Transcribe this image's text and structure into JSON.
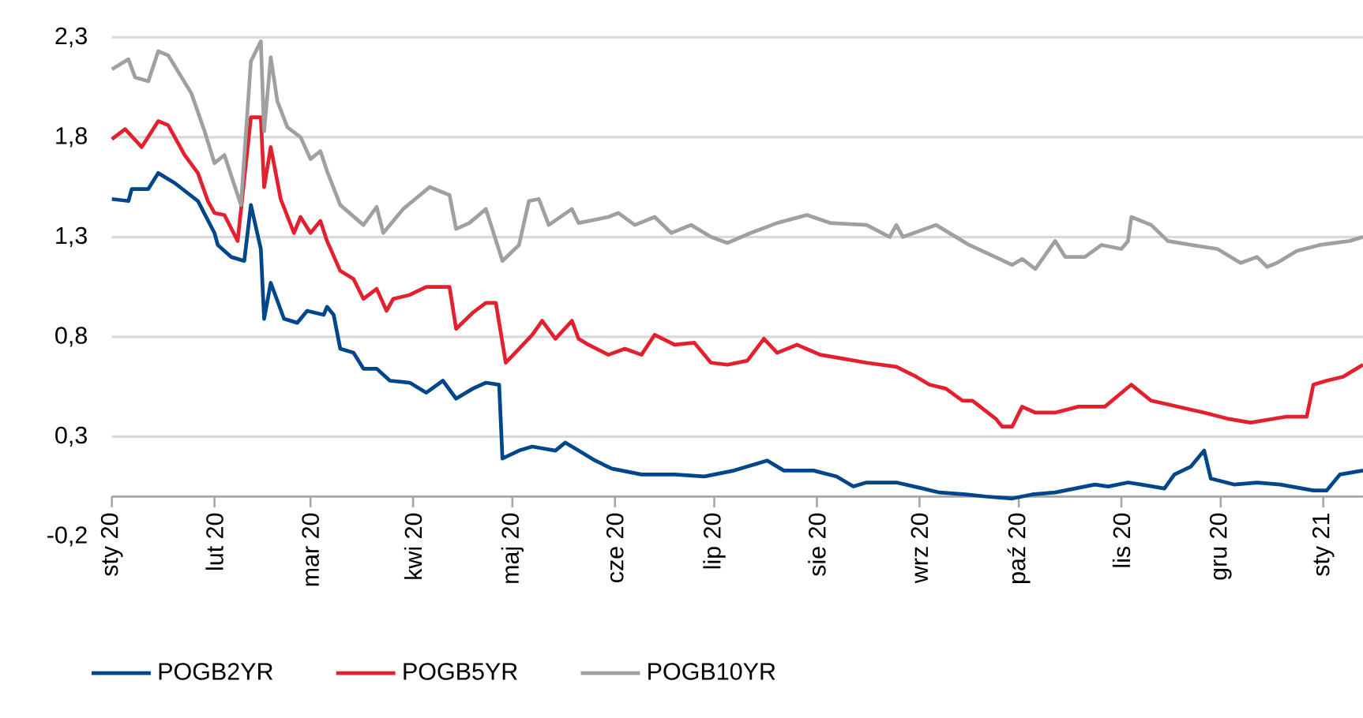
{
  "chart_data": {
    "type": "line",
    "xlim": [
      "2020-01-01",
      "2021-01-13"
    ],
    "ylim": [
      -0.2,
      2.3
    ],
    "yticks": [
      {
        "value": -0.2,
        "label": "-0,2"
      },
      {
        "value": 0.3,
        "label": "0,3"
      },
      {
        "value": 0.8,
        "label": "0,8"
      },
      {
        "value": 1.3,
        "label": "1,3"
      },
      {
        "value": 1.8,
        "label": "1,8"
      },
      {
        "value": 2.3,
        "label": "2,3"
      }
    ],
    "xticks": [
      {
        "value": "2020-01-01",
        "label": "sty 20"
      },
      {
        "value": "2020-02-01",
        "label": "lut 20"
      },
      {
        "value": "2020-03-01",
        "label": "mar 20"
      },
      {
        "value": "2020-04-01",
        "label": "kwi 20"
      },
      {
        "value": "2020-05-01",
        "label": "maj 20"
      },
      {
        "value": "2020-06-01",
        "label": "cze 20"
      },
      {
        "value": "2020-07-01",
        "label": "lip 20"
      },
      {
        "value": "2020-08-01",
        "label": "sie 20"
      },
      {
        "value": "2020-09-01",
        "label": "wrz 20"
      },
      {
        "value": "2020-10-01",
        "label": "paź 20"
      },
      {
        "value": "2020-11-01",
        "label": "lis 20"
      },
      {
        "value": "2020-12-01",
        "label": "gru 20"
      },
      {
        "value": "2021-01-01",
        "label": "sty 21"
      }
    ],
    "grid": "y",
    "legend": "bottom",
    "series": [
      {
        "name": "POGB2YR",
        "color": "#00468b",
        "x": [
          "2020-01-01",
          "2020-01-06",
          "2020-01-07",
          "2020-01-12",
          "2020-01-15",
          "2020-01-20",
          "2020-01-27",
          "2020-02-01",
          "2020-02-02",
          "2020-02-06",
          "2020-02-10",
          "2020-02-12",
          "2020-02-15",
          "2020-02-16",
          "2020-02-18",
          "2020-02-22",
          "2020-02-26",
          "2020-02-29",
          "2020-03-05",
          "2020-03-06",
          "2020-03-08",
          "2020-03-10",
          "2020-03-14",
          "2020-03-17",
          "2020-03-21",
          "2020-03-25",
          "2020-03-31",
          "2020-04-05",
          "2020-04-10",
          "2020-04-14",
          "2020-04-19",
          "2020-04-23",
          "2020-04-27",
          "2020-04-28",
          "2020-05-03",
          "2020-05-07",
          "2020-05-14",
          "2020-05-17",
          "2020-05-21",
          "2020-05-26",
          "2020-05-31",
          "2020-06-09",
          "2020-06-19",
          "2020-06-28",
          "2020-07-07",
          "2020-07-17",
          "2020-07-22",
          "2020-07-31",
          "2020-08-07",
          "2020-08-12",
          "2020-08-16",
          "2020-08-25",
          "2020-09-02",
          "2020-09-07",
          "2020-09-15",
          "2020-09-21",
          "2020-09-29",
          "2020-10-05",
          "2020-10-12",
          "2020-10-24",
          "2020-10-28",
          "2020-11-03",
          "2020-11-07",
          "2020-11-14",
          "2020-11-17",
          "2020-11-22",
          "2020-11-26",
          "2020-11-28",
          "2020-12-05",
          "2020-12-12",
          "2020-12-19",
          "2020-12-29",
          "2021-01-02",
          "2021-01-06",
          "2021-01-13"
        ],
        "values": [
          1.49,
          1.48,
          1.54,
          1.54,
          1.62,
          1.57,
          1.48,
          1.32,
          1.26,
          1.2,
          1.18,
          1.46,
          1.24,
          0.89,
          1.07,
          0.89,
          0.87,
          0.93,
          0.91,
          0.95,
          0.91,
          0.74,
          0.72,
          0.64,
          0.64,
          0.58,
          0.57,
          0.52,
          0.58,
          0.49,
          0.54,
          0.57,
          0.56,
          0.19,
          0.23,
          0.25,
          0.23,
          0.27,
          0.23,
          0.18,
          0.14,
          0.11,
          0.11,
          0.1,
          0.13,
          0.18,
          0.13,
          0.13,
          0.1,
          0.05,
          0.07,
          0.07,
          0.04,
          0.02,
          0.01,
          0.0,
          -0.01,
          0.01,
          0.02,
          0.06,
          0.05,
          0.07,
          0.06,
          0.04,
          0.11,
          0.15,
          0.23,
          0.09,
          0.06,
          0.07,
          0.06,
          0.03,
          0.03,
          0.11,
          0.13
        ]
      },
      {
        "name": "POGB5YR",
        "color": "#e2202e",
        "x": [
          "2020-01-01",
          "2020-01-05",
          "2020-01-10",
          "2020-01-15",
          "2020-01-18",
          "2020-01-23",
          "2020-01-27",
          "2020-01-30",
          "2020-02-01",
          "2020-02-04",
          "2020-02-08",
          "2020-02-12",
          "2020-02-15",
          "2020-02-16",
          "2020-02-18",
          "2020-02-21",
          "2020-02-25",
          "2020-02-27",
          "2020-03-01",
          "2020-03-04",
          "2020-03-06",
          "2020-03-10",
          "2020-03-14",
          "2020-03-17",
          "2020-03-21",
          "2020-03-24",
          "2020-03-26",
          "2020-03-31",
          "2020-04-05",
          "2020-04-12",
          "2020-04-14",
          "2020-04-19",
          "2020-04-23",
          "2020-04-26",
          "2020-04-29",
          "2020-05-03",
          "2020-05-07",
          "2020-05-10",
          "2020-05-14",
          "2020-05-19",
          "2020-05-21",
          "2020-05-24",
          "2020-05-30",
          "2020-06-04",
          "2020-06-09",
          "2020-06-13",
          "2020-06-19",
          "2020-06-25",
          "2020-06-30",
          "2020-07-05",
          "2020-07-11",
          "2020-07-16",
          "2020-07-20",
          "2020-07-26",
          "2020-08-02",
          "2020-08-09",
          "2020-08-16",
          "2020-08-25",
          "2020-08-31",
          "2020-09-04",
          "2020-09-09",
          "2020-09-14",
          "2020-09-17",
          "2020-09-24",
          "2020-09-26",
          "2020-09-29",
          "2020-10-02",
          "2020-10-06",
          "2020-10-12",
          "2020-10-19",
          "2020-10-27",
          "2020-11-04",
          "2020-11-10",
          "2020-11-18",
          "2020-11-26",
          "2020-12-03",
          "2020-12-10",
          "2020-12-21",
          "2020-12-27",
          "2020-12-29",
          "2021-01-02",
          "2021-01-07",
          "2021-01-09",
          "2021-01-13"
        ],
        "values": [
          1.79,
          1.84,
          1.75,
          1.88,
          1.86,
          1.71,
          1.62,
          1.48,
          1.42,
          1.41,
          1.28,
          1.9,
          1.9,
          1.55,
          1.75,
          1.49,
          1.32,
          1.4,
          1.32,
          1.38,
          1.28,
          1.13,
          1.09,
          0.99,
          1.04,
          0.93,
          0.99,
          1.01,
          1.05,
          1.05,
          0.84,
          0.92,
          0.97,
          0.97,
          0.67,
          0.74,
          0.81,
          0.88,
          0.79,
          0.88,
          0.79,
          0.76,
          0.71,
          0.74,
          0.71,
          0.81,
          0.76,
          0.77,
          0.67,
          0.66,
          0.68,
          0.79,
          0.72,
          0.76,
          0.71,
          0.69,
          0.67,
          0.65,
          0.6,
          0.56,
          0.54,
          0.48,
          0.48,
          0.39,
          0.35,
          0.35,
          0.45,
          0.42,
          0.42,
          0.45,
          0.45,
          0.56,
          0.48,
          0.45,
          0.42,
          0.39,
          0.37,
          0.4,
          0.4,
          0.56,
          0.58,
          0.6,
          0.62,
          0.66
        ]
      },
      {
        "name": "POGB10YR",
        "color": "#a0a0a0",
        "x": [
          "2020-01-01",
          "2020-01-06",
          "2020-01-08",
          "2020-01-12",
          "2020-01-15",
          "2020-01-18",
          "2020-01-25",
          "2020-01-29",
          "2020-02-01",
          "2020-02-04",
          "2020-02-09",
          "2020-02-12",
          "2020-02-15",
          "2020-02-16",
          "2020-02-18",
          "2020-02-20",
          "2020-02-23",
          "2020-02-27",
          "2020-03-01",
          "2020-03-04",
          "2020-03-06",
          "2020-03-10",
          "2020-03-17",
          "2020-03-21",
          "2020-03-23",
          "2020-03-29",
          "2020-04-06",
          "2020-04-12",
          "2020-04-14",
          "2020-04-18",
          "2020-04-23",
          "2020-04-28",
          "2020-05-03",
          "2020-05-06",
          "2020-05-09",
          "2020-05-12",
          "2020-05-19",
          "2020-05-21",
          "2020-05-30",
          "2020-06-02",
          "2020-06-07",
          "2020-06-13",
          "2020-06-18",
          "2020-06-24",
          "2020-06-30",
          "2020-07-05",
          "2020-07-12",
          "2020-07-20",
          "2020-07-29",
          "2020-08-05",
          "2020-08-16",
          "2020-08-23",
          "2020-08-25",
          "2020-08-27",
          "2020-09-06",
          "2020-09-14",
          "2020-09-16",
          "2020-09-29",
          "2020-10-02",
          "2020-10-06",
          "2020-10-12",
          "2020-10-15",
          "2020-10-21",
          "2020-10-26",
          "2020-11-01",
          "2020-11-03",
          "2020-11-04",
          "2020-11-10",
          "2020-11-15",
          "2020-11-22",
          "2020-11-30",
          "2020-12-07",
          "2020-12-12",
          "2020-12-15",
          "2020-12-18",
          "2020-12-24",
          "2020-12-31",
          "2021-01-09",
          "2021-01-13"
        ],
        "values": [
          2.14,
          2.19,
          2.1,
          2.08,
          2.23,
          2.21,
          2.02,
          1.83,
          1.67,
          1.71,
          1.46,
          2.18,
          2.28,
          1.83,
          2.2,
          1.98,
          1.85,
          1.8,
          1.69,
          1.73,
          1.63,
          1.46,
          1.36,
          1.45,
          1.32,
          1.44,
          1.55,
          1.51,
          1.34,
          1.37,
          1.44,
          1.18,
          1.26,
          1.48,
          1.49,
          1.36,
          1.44,
          1.37,
          1.4,
          1.42,
          1.36,
          1.4,
          1.32,
          1.36,
          1.3,
          1.27,
          1.32,
          1.37,
          1.41,
          1.37,
          1.36,
          1.3,
          1.36,
          1.3,
          1.36,
          1.28,
          1.26,
          1.16,
          1.19,
          1.14,
          1.28,
          1.2,
          1.2,
          1.26,
          1.24,
          1.28,
          1.4,
          1.36,
          1.28,
          1.26,
          1.24,
          1.17,
          1.2,
          1.15,
          1.17,
          1.23,
          1.26,
          1.28,
          1.3
        ]
      }
    ]
  }
}
